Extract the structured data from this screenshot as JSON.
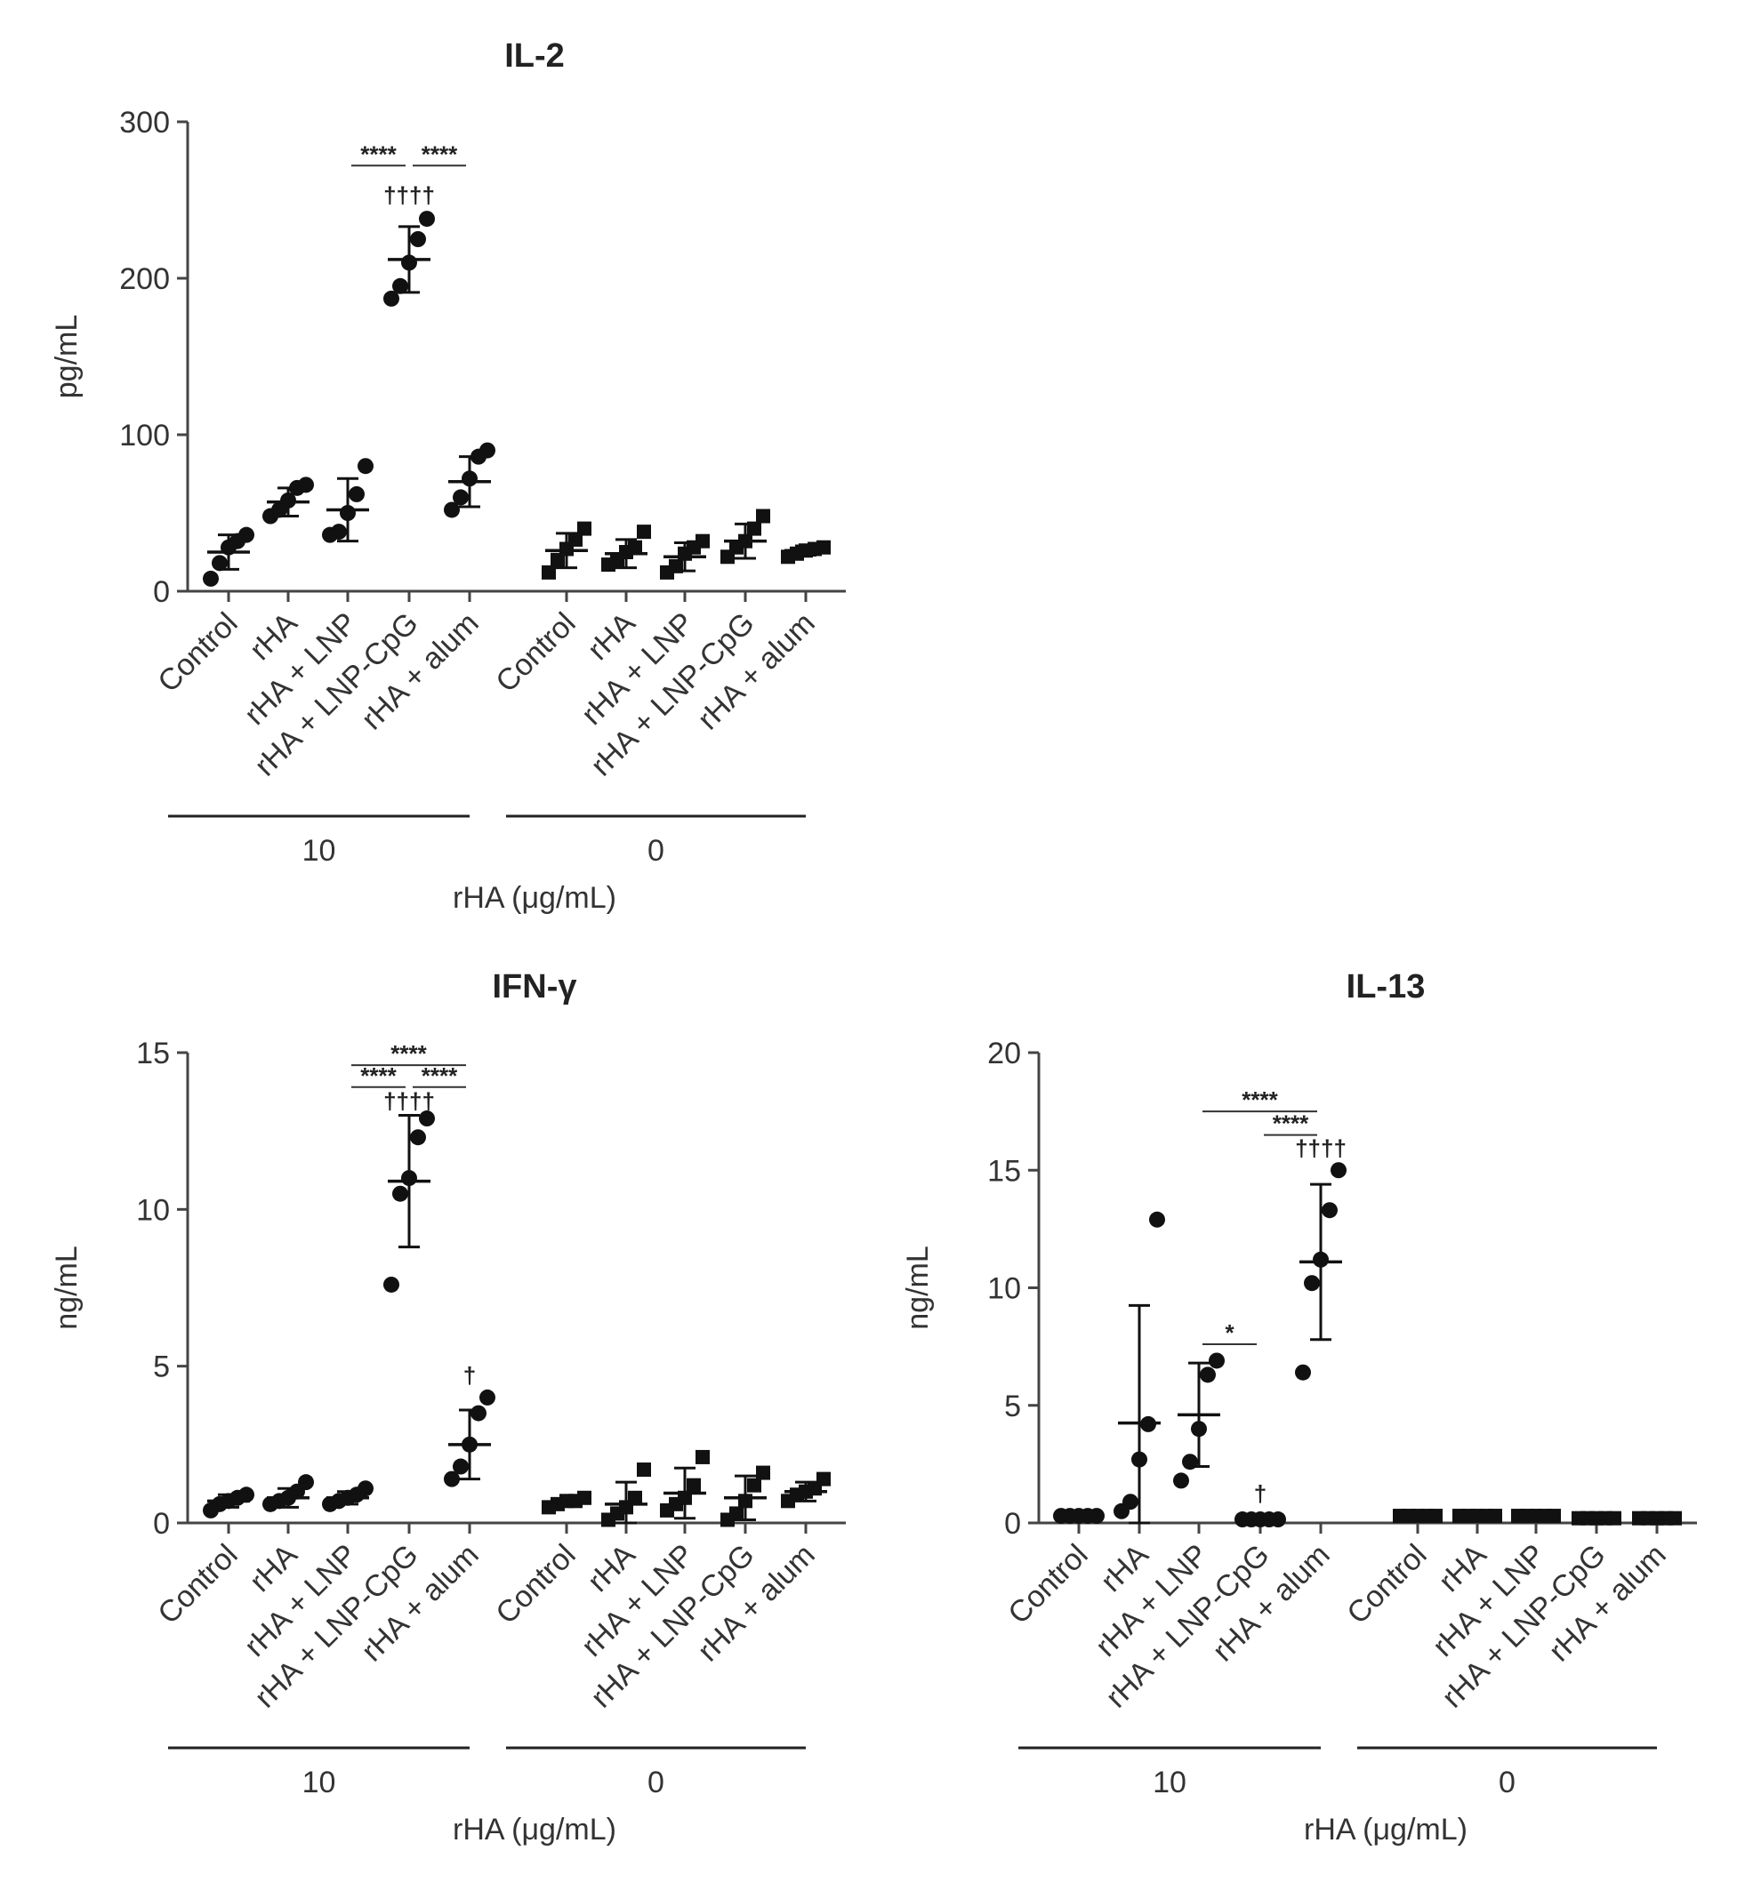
{
  "chart_data": [
    {
      "type": "scatter",
      "title": "IL-2",
      "ylabel": "pg/mL",
      "xlabel": "rHA (μg/mL)",
      "ylim": [
        0,
        300
      ],
      "yticks": [
        0,
        100,
        200,
        300
      ],
      "group_labels": [
        "10",
        "0"
      ],
      "categories": [
        "Control",
        "rHA",
        "rHA + LNP",
        "rHA + LNP-CpG",
        "rHA + alum",
        "Control",
        "rHA",
        "rHA + LNP",
        "rHA + LNP-CpG",
        "rHA + alum"
      ],
      "series": [
        {
          "name": "Control",
          "group": "10",
          "marker": "circle",
          "points": [
            8,
            18,
            28,
            32,
            36
          ],
          "mean": 25,
          "sd": 11
        },
        {
          "name": "rHA",
          "group": "10",
          "marker": "circle",
          "points": [
            48,
            52,
            58,
            66,
            68
          ],
          "mean": 57,
          "sd": 9
        },
        {
          "name": "rHA + LNP",
          "group": "10",
          "marker": "circle",
          "points": [
            36,
            38,
            50,
            62,
            80
          ],
          "mean": 52,
          "sd": 20
        },
        {
          "name": "rHA + LNP-CpG",
          "group": "10",
          "marker": "circle",
          "points": [
            187,
            195,
            210,
            225,
            238
          ],
          "mean": 212,
          "sd": 21
        },
        {
          "name": "rHA + alum",
          "group": "10",
          "marker": "circle",
          "points": [
            52,
            60,
            72,
            86,
            90
          ],
          "mean": 70,
          "sd": 16
        },
        {
          "name": "Control",
          "group": "0",
          "marker": "square",
          "points": [
            12,
            20,
            27,
            33,
            40
          ],
          "mean": 26,
          "sd": 11
        },
        {
          "name": "rHA",
          "group": "0",
          "marker": "square",
          "points": [
            17,
            20,
            25,
            28,
            38
          ],
          "mean": 24,
          "sd": 9
        },
        {
          "name": "rHA + LNP",
          "group": "0",
          "marker": "square",
          "points": [
            12,
            16,
            24,
            28,
            32
          ],
          "mean": 22,
          "sd": 9
        },
        {
          "name": "rHA + LNP-CpG",
          "group": "0",
          "marker": "square",
          "points": [
            22,
            28,
            32,
            40,
            48
          ],
          "mean": 32,
          "sd": 11
        },
        {
          "name": "rHA + alum",
          "group": "0",
          "marker": "square",
          "points": [
            22,
            24,
            26,
            27,
            28
          ],
          "mean": 26,
          "sd": 3
        }
      ],
      "annotations": [
        {
          "type": "bracket",
          "from": 2,
          "to": 3,
          "level": 272,
          "text": "****"
        },
        {
          "type": "bracket",
          "from": 3,
          "to": 4,
          "level": 272,
          "text": "****"
        },
        {
          "type": "dagger",
          "at": 3,
          "level": 248,
          "text": "††††"
        }
      ]
    },
    {
      "type": "scatter",
      "title": "IFN-γ",
      "ylabel": "ng/mL",
      "xlabel": "rHA (μg/mL)",
      "ylim": [
        0,
        15
      ],
      "yticks": [
        0,
        5,
        10,
        15
      ],
      "group_labels": [
        "10",
        "0"
      ],
      "categories": [
        "Control",
        "rHA",
        "rHA + LNP",
        "rHA + LNP-CpG",
        "rHA + alum",
        "Control",
        "rHA",
        "rHA + LNP",
        "rHA + LNP-CpG",
        "rHA + alum"
      ],
      "series": [
        {
          "name": "Control",
          "group": "10",
          "marker": "circle",
          "points": [
            0.4,
            0.6,
            0.7,
            0.8,
            0.9
          ],
          "mean": 0.7,
          "sd": 0.2
        },
        {
          "name": "rHA",
          "group": "10",
          "marker": "circle",
          "points": [
            0.6,
            0.7,
            0.8,
            1.0,
            1.3
          ],
          "mean": 0.8,
          "sd": 0.3
        },
        {
          "name": "rHA + LNP",
          "group": "10",
          "marker": "circle",
          "points": [
            0.6,
            0.7,
            0.8,
            0.9,
            1.1
          ],
          "mean": 0.8,
          "sd": 0.2
        },
        {
          "name": "rHA + LNP-CpG",
          "group": "10",
          "marker": "circle",
          "points": [
            7.6,
            10.5,
            11.0,
            12.3,
            12.9
          ],
          "mean": 10.9,
          "sd": 2.1
        },
        {
          "name": "rHA + alum",
          "group": "10",
          "marker": "circle",
          "points": [
            1.4,
            1.8,
            2.5,
            3.5,
            4.0
          ],
          "mean": 2.5,
          "sd": 1.1
        },
        {
          "name": "Control",
          "group": "0",
          "marker": "square",
          "points": [
            0.5,
            0.6,
            0.7,
            0.7,
            0.8
          ],
          "mean": 0.65,
          "sd": 0.1
        },
        {
          "name": "rHA",
          "group": "0",
          "marker": "square",
          "points": [
            0.1,
            0.3,
            0.5,
            0.8,
            1.7
          ],
          "mean": 0.6,
          "sd": 0.7
        },
        {
          "name": "rHA + LNP",
          "group": "0",
          "marker": "square",
          "points": [
            0.4,
            0.6,
            0.8,
            1.2,
            2.1
          ],
          "mean": 0.95,
          "sd": 0.8
        },
        {
          "name": "rHA + LNP-CpG",
          "group": "0",
          "marker": "square",
          "points": [
            0.1,
            0.3,
            0.7,
            1.2,
            1.6
          ],
          "mean": 0.8,
          "sd": 0.7
        },
        {
          "name": "rHA + alum",
          "group": "0",
          "marker": "square",
          "points": [
            0.7,
            0.9,
            1.0,
            1.1,
            1.4
          ],
          "mean": 1.0,
          "sd": 0.3
        }
      ],
      "annotations": [
        {
          "type": "bracket",
          "from": 2,
          "to": 4,
          "level": 14.6,
          "text": "****"
        },
        {
          "type": "bracket",
          "from": 2,
          "to": 3,
          "level": 13.9,
          "text": "****"
        },
        {
          "type": "bracket",
          "from": 3,
          "to": 4,
          "level": 13.9,
          "text": "****"
        },
        {
          "type": "dagger",
          "at": 3,
          "level": 13.2,
          "text": "††††"
        },
        {
          "type": "dagger",
          "at": 4,
          "level": 4.45,
          "text": "†"
        }
      ]
    },
    {
      "type": "scatter",
      "title": "IL-13",
      "ylabel": "ng/mL",
      "xlabel": "rHA (μg/mL)",
      "ylim": [
        0,
        20
      ],
      "yticks": [
        0,
        5,
        10,
        15,
        20
      ],
      "group_labels": [
        "10",
        "0"
      ],
      "categories": [
        "Control",
        "rHA",
        "rHA + LNP",
        "rHA + LNP-CpG",
        "rHA + alum",
        "Control",
        "rHA",
        "rHA + LNP",
        "rHA + LNP-CpG",
        "rHA + alum"
      ],
      "series": [
        {
          "name": "Control",
          "group": "10",
          "marker": "circle",
          "points": [
            0.3,
            0.3,
            0.3,
            0.3,
            0.3
          ],
          "mean": 0.3,
          "sd": 0.02
        },
        {
          "name": "rHA",
          "group": "10",
          "marker": "circle",
          "points": [
            0.5,
            0.9,
            2.7,
            4.2,
            12.9
          ],
          "mean": 4.25,
          "sd": 5.0
        },
        {
          "name": "rHA + LNP",
          "group": "10",
          "marker": "circle",
          "points": [
            1.8,
            2.6,
            4.0,
            6.3,
            6.9
          ],
          "mean": 4.6,
          "sd": 2.2
        },
        {
          "name": "rHA + LNP-CpG",
          "group": "10",
          "marker": "circle",
          "points": [
            0.15,
            0.15,
            0.15,
            0.15,
            0.15
          ],
          "mean": 0.15,
          "sd": 0.02
        },
        {
          "name": "rHA + alum",
          "group": "10",
          "marker": "circle",
          "points": [
            6.4,
            10.2,
            11.2,
            13.3,
            15.0
          ],
          "mean": 11.1,
          "sd": 3.3
        },
        {
          "name": "Control",
          "group": "0",
          "marker": "square",
          "points": [
            0.3,
            0.3,
            0.3,
            0.3,
            0.3
          ],
          "mean": 0.3,
          "sd": 0.02
        },
        {
          "name": "rHA",
          "group": "0",
          "marker": "square",
          "points": [
            0.3,
            0.3,
            0.3,
            0.3,
            0.3
          ],
          "mean": 0.3,
          "sd": 0.02
        },
        {
          "name": "rHA + LNP",
          "group": "0",
          "marker": "square",
          "points": [
            0.3,
            0.3,
            0.3,
            0.3,
            0.3
          ],
          "mean": 0.3,
          "sd": 0.02
        },
        {
          "name": "rHA + LNP-CpG",
          "group": "0",
          "marker": "square",
          "points": [
            0.2,
            0.2,
            0.2,
            0.2,
            0.2
          ],
          "mean": 0.2,
          "sd": 0.02
        },
        {
          "name": "rHA + alum",
          "group": "0",
          "marker": "square",
          "points": [
            0.2,
            0.2,
            0.2,
            0.2,
            0.2
          ],
          "mean": 0.2,
          "sd": 0.02
        }
      ],
      "annotations": [
        {
          "type": "bracket",
          "from": 2,
          "to": 4,
          "level": 17.5,
          "text": "****"
        },
        {
          "type": "bracket",
          "from": 3,
          "to": 4,
          "level": 16.5,
          "text": "****"
        },
        {
          "type": "dagger",
          "at": 4,
          "level": 15.6,
          "text": "††††"
        },
        {
          "type": "bracket",
          "from": 2,
          "to": 3,
          "level": 7.6,
          "text": "*"
        },
        {
          "type": "dagger",
          "at": 3,
          "level": 0.9,
          "text": "†"
        }
      ]
    }
  ]
}
